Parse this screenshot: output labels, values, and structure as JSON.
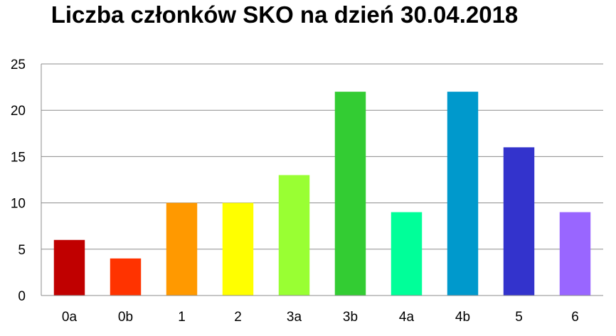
{
  "chart_data": {
    "type": "bar",
    "title": "Liczba członków SKO na dzień 30.04.2018",
    "xlabel": "",
    "ylabel": "",
    "categories": [
      "0a",
      "0b",
      "1",
      "2",
      "3a",
      "3b",
      "4a",
      "4b",
      "5",
      "6"
    ],
    "values": [
      6,
      4,
      10,
      10,
      13,
      22,
      9,
      22,
      16,
      9
    ],
    "colors": [
      "#C00000",
      "#FF3300",
      "#FF9900",
      "#FFFF00",
      "#99FF33",
      "#33CC33",
      "#00FF99",
      "#0099CC",
      "#3333CC",
      "#9966FF"
    ],
    "ylim": [
      0,
      25
    ],
    "yticks": [
      "0",
      "5",
      "10",
      "15",
      "20",
      "25"
    ],
    "grid": true,
    "legend": "none"
  }
}
